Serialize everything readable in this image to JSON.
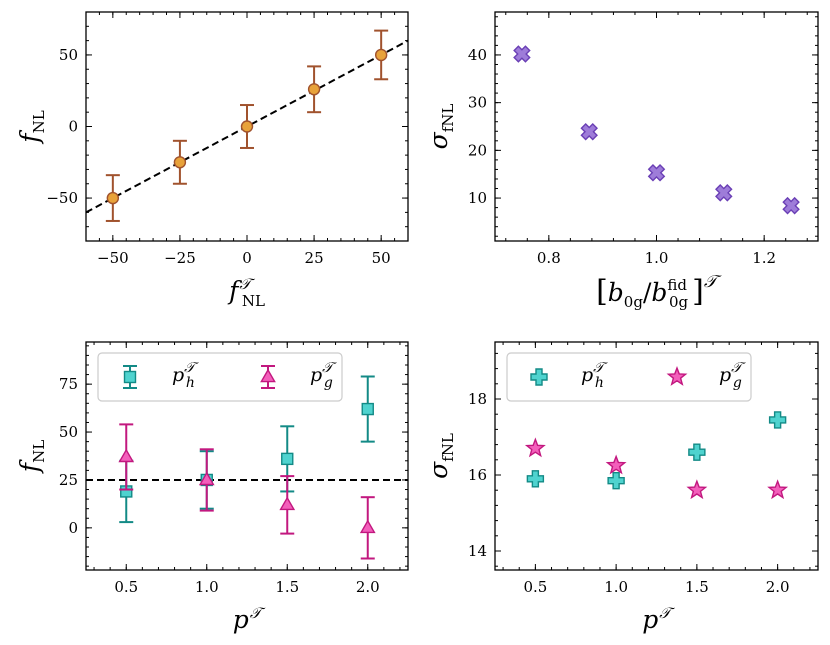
{
  "colors": {
    "purple_face": "#9e7cd9",
    "purple_edge": "#6a3fb5",
    "teal_face": "#4fd3cf",
    "teal_edge": "#138a86",
    "pink_face": "#f35fbb",
    "pink_edge": "#c2187f",
    "orange_face": "#e8a23a",
    "orange_edge": "#a0522d"
  },
  "chart_data": [
    {
      "id": "top-left",
      "type": "scatter",
      "xlim": [
        -60,
        60
      ],
      "ylim": [
        -80,
        80
      ],
      "xticks": [
        -50,
        -25,
        0,
        25,
        50
      ],
      "yticks": [
        -50,
        0,
        50
      ],
      "xtick_labels": [
        "−50",
        "−25",
        "0",
        "25",
        "50"
      ],
      "ytick_labels": [
        "−50",
        "0",
        "50"
      ],
      "xlabel": "f",
      "xlabel_sub": "NL",
      "xlabel_sup": "𝒯",
      "ylabel": "f",
      "ylabel_sub": "NL",
      "reference_line": {
        "type": "identity",
        "style": "dashed"
      },
      "series": [
        {
          "x": [
            -50,
            -25,
            0,
            25,
            50
          ],
          "y": [
            -50,
            -25,
            0,
            26,
            50
          ],
          "err": [
            16,
            15,
            15,
            16,
            17
          ],
          "marker": "circle",
          "color": "orange"
        }
      ]
    },
    {
      "id": "top-right",
      "type": "scatter",
      "xlim": [
        0.7,
        1.3
      ],
      "ylim": [
        1,
        49
      ],
      "xticks": [
        0.8,
        1.0,
        1.2
      ],
      "yticks": [
        10,
        20,
        30,
        40
      ],
      "xtick_labels": [
        "0.8",
        "1.0",
        "1.2"
      ],
      "ytick_labels": [
        "10",
        "20",
        "30",
        "40"
      ],
      "xlabel": "[b0g/b0g^fid]^𝒯",
      "ylabel": "σ",
      "ylabel_sub": "fNL",
      "series": [
        {
          "x": [
            0.75,
            0.875,
            1.0,
            1.125,
            1.25
          ],
          "y": [
            40.2,
            23.9,
            15.3,
            11.1,
            8.4
          ],
          "marker": "x-filled",
          "color": "purple"
        }
      ]
    },
    {
      "id": "bottom-left",
      "type": "scatter",
      "xlim": [
        0.25,
        2.25
      ],
      "ylim": [
        -22,
        97
      ],
      "xticks": [
        0.5,
        1.0,
        1.5,
        2.0
      ],
      "yticks": [
        0,
        25,
        50,
        75
      ],
      "xtick_labels": [
        "0.5",
        "1.0",
        "1.5",
        "2.0"
      ],
      "ytick_labels": [
        "0",
        "25",
        "50",
        "75"
      ],
      "xlabel": "p",
      "xlabel_sup": "𝒯",
      "ylabel": "f",
      "ylabel_sub": "NL",
      "reference_line": {
        "type": "horizontal",
        "y": 25,
        "style": "dashed"
      },
      "series": [
        {
          "name": "p_h^𝒯",
          "x": [
            0.5,
            1.0,
            1.5,
            2.0
          ],
          "y": [
            19,
            25,
            36,
            62
          ],
          "err": [
            16,
            15,
            17,
            17
          ],
          "marker": "square",
          "color": "teal"
        },
        {
          "name": "p_g^𝒯",
          "x": [
            0.5,
            1.0,
            1.5,
            2.0
          ],
          "y": [
            37,
            25,
            12,
            0
          ],
          "err": [
            17,
            16,
            15,
            16
          ],
          "marker": "triangle",
          "color": "pink"
        }
      ],
      "legend": {
        "position": "top",
        "entries": [
          "p",
          "p"
        ],
        "subs": [
          "h",
          "g"
        ],
        "sup": "𝒯"
      }
    },
    {
      "id": "bottom-right",
      "type": "scatter",
      "xlim": [
        0.25,
        2.25
      ],
      "ylim": [
        13.5,
        19.5
      ],
      "xticks": [
        0.5,
        1.0,
        1.5,
        2.0
      ],
      "yticks": [
        14,
        16,
        18
      ],
      "xtick_labels": [
        "0.5",
        "1.0",
        "1.5",
        "2.0"
      ],
      "ytick_labels": [
        "14",
        "16",
        "18"
      ],
      "xlabel": "p",
      "xlabel_sup": "𝒯",
      "ylabel": "σ",
      "ylabel_sub": "fNL",
      "series": [
        {
          "name": "p_h^𝒯",
          "x": [
            0.5,
            1.0,
            1.5,
            2.0
          ],
          "y": [
            15.9,
            15.85,
            16.6,
            17.45
          ],
          "marker": "plus",
          "color": "teal"
        },
        {
          "name": "p_g^𝒯",
          "x": [
            0.5,
            1.0,
            1.5,
            2.0
          ],
          "y": [
            16.7,
            16.25,
            15.6,
            15.6
          ],
          "marker": "star",
          "color": "pink"
        }
      ],
      "legend": {
        "position": "top",
        "entries": [
          "p",
          "p"
        ],
        "subs": [
          "h",
          "g"
        ],
        "sup": "𝒯"
      }
    }
  ]
}
